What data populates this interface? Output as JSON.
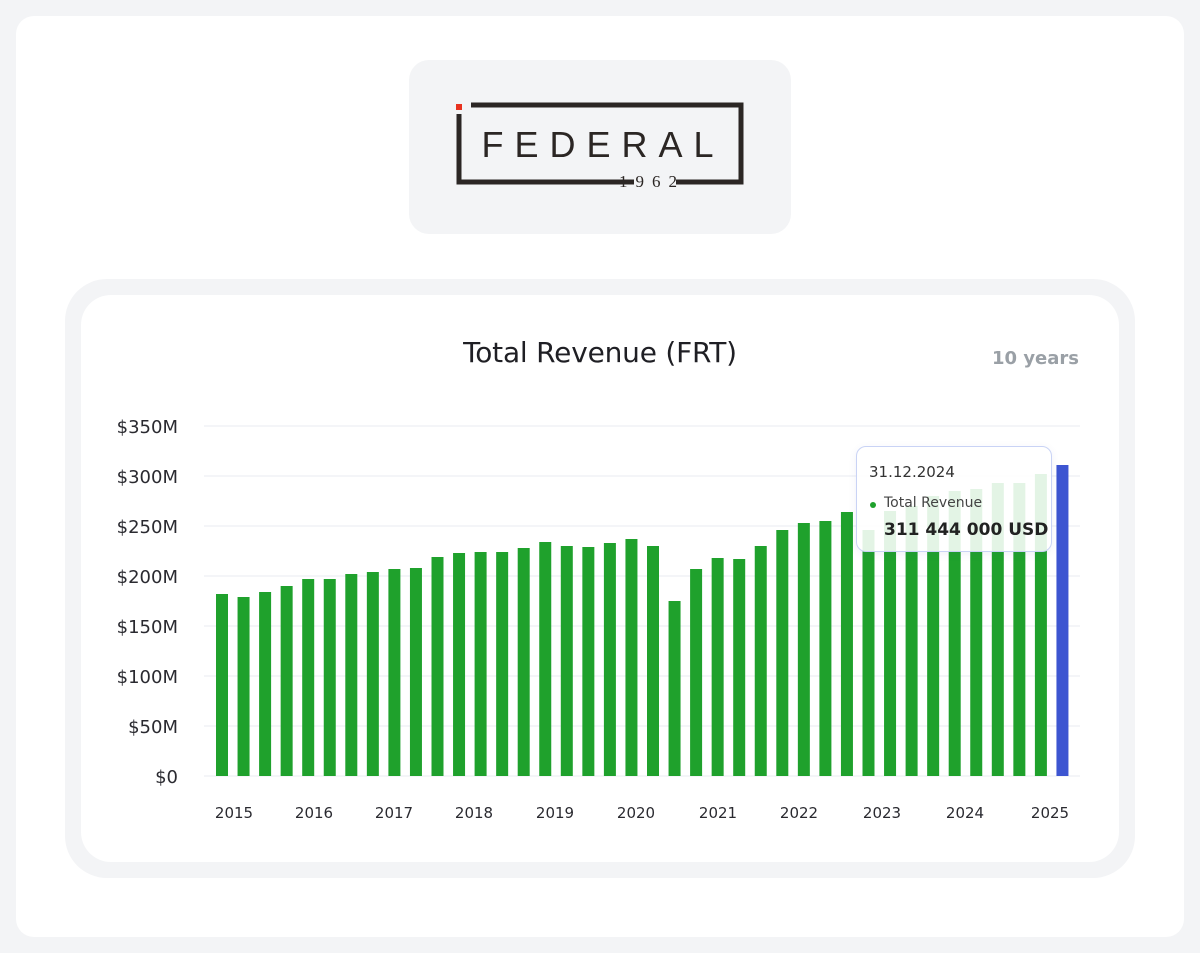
{
  "logo": {
    "name": "FEDERAL",
    "year": "1962",
    "colors": {
      "mark": "#2b2624",
      "accent": "#e8321f"
    }
  },
  "chart_header": {
    "title": "Total Revenue (FRT)",
    "range_label": "10 years"
  },
  "tooltip": {
    "date": "31.12.2024",
    "series_name": "Total Revenue",
    "value": "311 444 000 USD"
  },
  "chart_data": {
    "type": "bar",
    "title": "Total Revenue (FRT)",
    "xlabel": "",
    "ylabel": "",
    "ylim": [
      0,
      350
    ],
    "unit": "$M",
    "ytick_labels": [
      "$0",
      "$50M",
      "$100M",
      "$150M",
      "$200M",
      "$250M",
      "$300M",
      "$350M"
    ],
    "xtick_labels": [
      "2015",
      "2016",
      "2017",
      "2018",
      "2019",
      "2020",
      "2021",
      "2022",
      "2023",
      "2024",
      "2025"
    ],
    "grid": true,
    "legend": "none",
    "colors": {
      "bar": "#1fa12c",
      "highlight": "#3d55d1",
      "grid": "#e8ebf2"
    },
    "highlight_index": 39,
    "series": [
      {
        "values": [
          182,
          179,
          184,
          190,
          197,
          197,
          202,
          204,
          207,
          208,
          219,
          223,
          224,
          224,
          228,
          234,
          230,
          229,
          233,
          237,
          230,
          175,
          207,
          218,
          217,
          230,
          246,
          253,
          255,
          264,
          246,
          265,
          270,
          280,
          285,
          287,
          293,
          293,
          302,
          311
        ]
      }
    ]
  }
}
